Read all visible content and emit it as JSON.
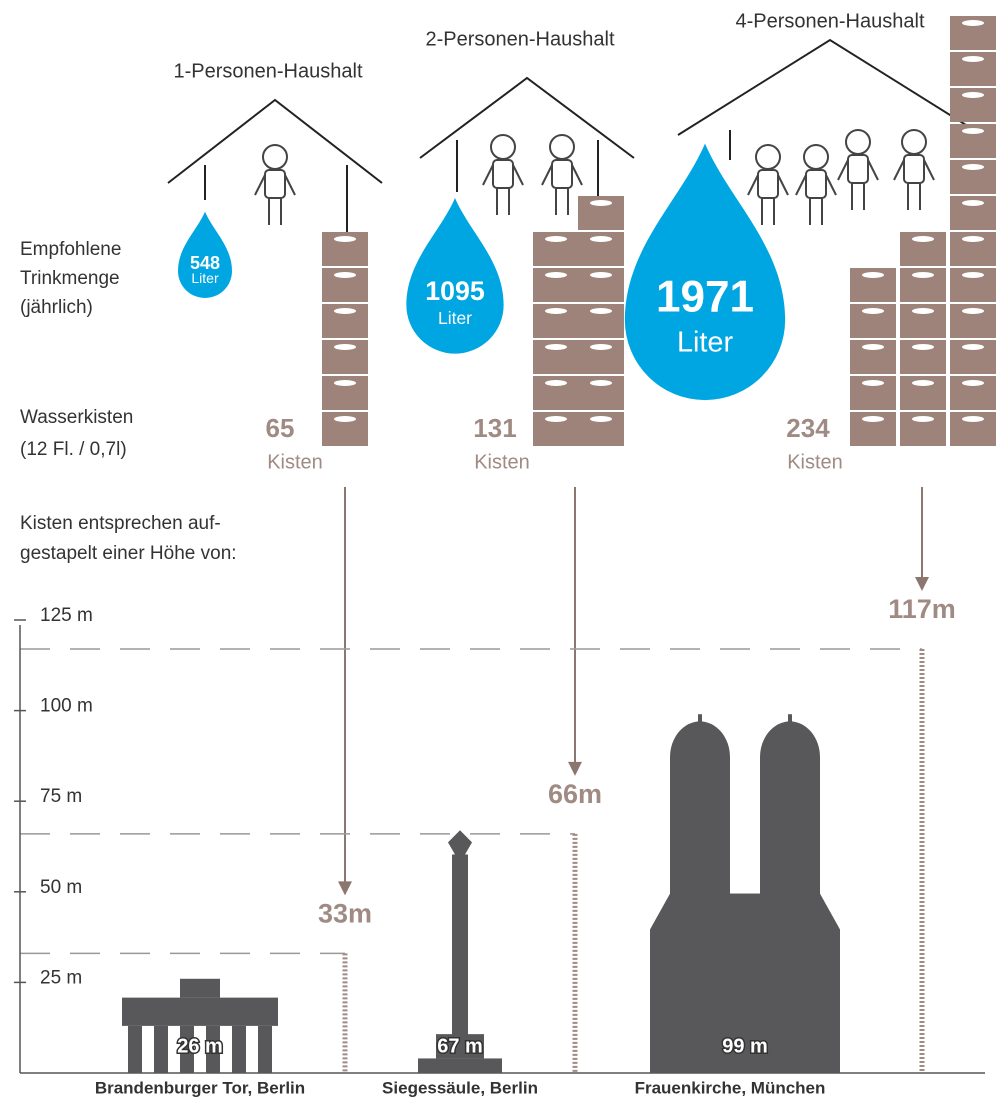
{
  "row_labels": {
    "drink": [
      "Empfohlene",
      "Trinkmenge",
      "(jährlich)"
    ],
    "crates": [
      "Wasserkisten",
      "(12 Fl. / 0,7l)"
    ],
    "height": [
      "Kisten entsprechen auf-",
      "gestapelt einer Höhe von:"
    ]
  },
  "households": [
    {
      "title": "1-Personen-Haushalt",
      "liters": 548,
      "liters_unit": "Liter",
      "crates": 65,
      "crates_unit": "Kisten",
      "height": 33,
      "height_label": "33m"
    },
    {
      "title": "2-Personen-Haushalt",
      "liters": 1095,
      "liters_unit": "Liter",
      "crates": 131,
      "crates_unit": "Kisten",
      "height": 66,
      "height_label": "66m"
    },
    {
      "title": "4-Personen-Haushalt",
      "liters": 1971,
      "liters_unit": "Liter",
      "crates": 234,
      "crates_unit": "Kisten",
      "height": 117,
      "height_label": "117m"
    }
  ],
  "chart_data": {
    "type": "landmarks",
    "categories": [
      "Brandenburger Tor, Berlin",
      "Siegessäule, Berlin",
      "Frauenkirche, München"
    ],
    "values": [
      26,
      67,
      99
    ],
    "value_labels": [
      "26 m",
      "67 m",
      "99 m"
    ],
    "color": "#58585a",
    "ylim": [
      0,
      125
    ],
    "yticks": [
      {
        "value": 25,
        "label": "25 m"
      },
      {
        "value": 50,
        "label": "50 m"
      },
      {
        "value": 75,
        "label": "75 m"
      },
      {
        "value": 100,
        "label": "100 m"
      },
      {
        "value": 125,
        "label": "125 m"
      }
    ]
  }
}
